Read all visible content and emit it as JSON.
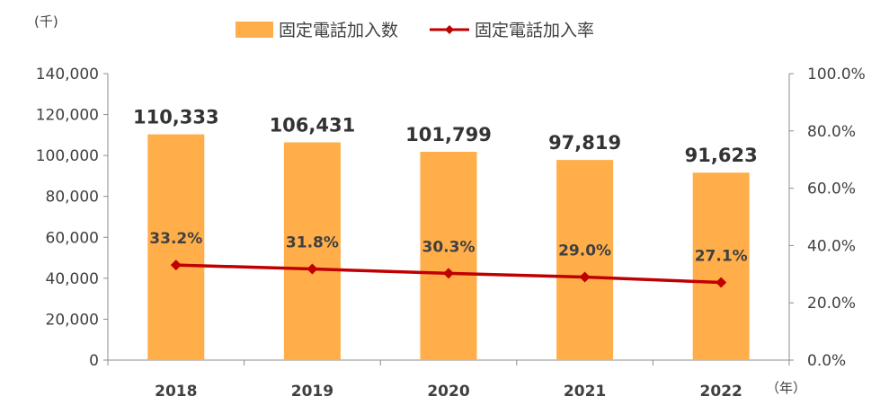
{
  "chart_data": {
    "type": "bar",
    "categories": [
      "2018",
      "2019",
      "2020",
      "2021",
      "2022"
    ],
    "series": [
      {
        "name": "固定電話加入数",
        "type": "bar",
        "axis": "left",
        "values": [
          110333,
          106431,
          101799,
          97819,
          91623
        ],
        "labels": [
          "110,333",
          "106,431",
          "101,799",
          "97,819",
          "91,623"
        ],
        "color": "#FFAE4A"
      },
      {
        "name": "固定電話加入率",
        "type": "line",
        "axis": "right",
        "values": [
          33.2,
          31.8,
          30.3,
          29.0,
          27.1
        ],
        "labels": [
          "33.2%",
          "31.8%",
          "30.3%",
          "29.0%",
          "27.1%"
        ],
        "color": "#C00000"
      }
    ],
    "y_left": {
      "unit": "(千)",
      "ylim": [
        0,
        140000
      ],
      "ticks": [
        "0",
        "20,000",
        "40,000",
        "60,000",
        "80,000",
        "100,000",
        "120,000",
        "140,000"
      ]
    },
    "y_right": {
      "ylim": [
        0,
        100
      ],
      "ticks": [
        "0.0%",
        "20.0%",
        "40.0%",
        "60.0%",
        "80.0%",
        "100.0%"
      ]
    },
    "x_unit": "（年）",
    "legend_position": "top",
    "grid": false
  }
}
